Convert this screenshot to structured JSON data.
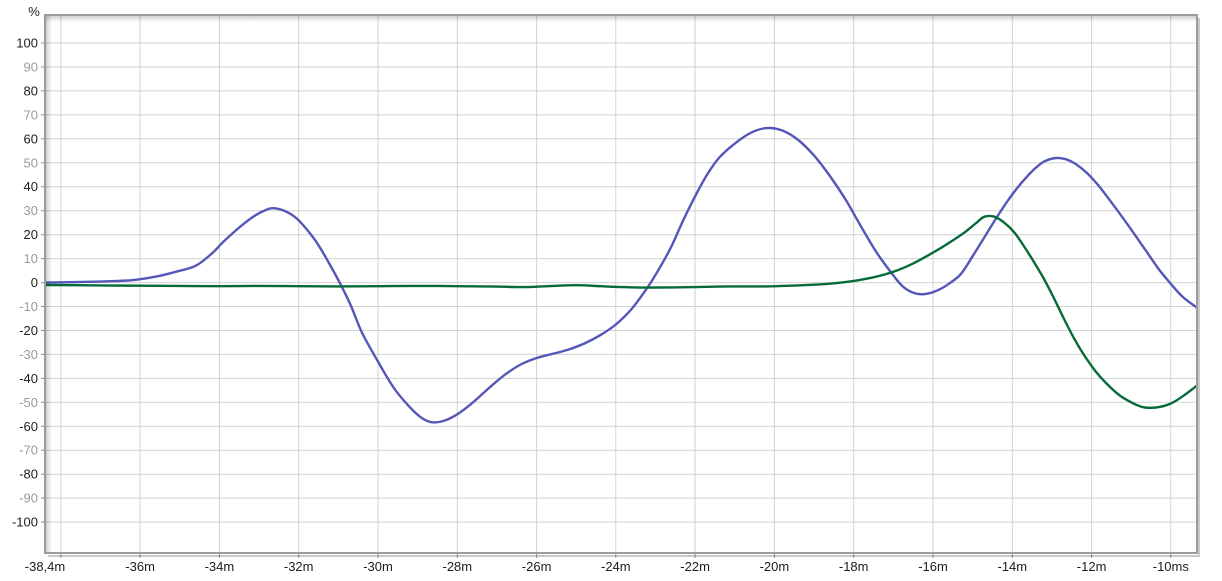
{
  "chart_data": {
    "type": "line",
    "title": "",
    "ylabel": "%",
    "xlabel": "",
    "x_unit": "ms",
    "xlim": [
      -38.4,
      -9.34
    ],
    "ylim": [
      -112.9,
      111.7
    ],
    "grid": true,
    "legend_position": "none",
    "x_gridlines": [
      -38,
      -36,
      -34,
      -32,
      -30,
      -28,
      -26,
      -24,
      -22,
      -20,
      -18,
      -16,
      -14,
      -12,
      -10
    ],
    "x_ticks": [
      {
        "t": -38.4,
        "label": "-38,4m"
      },
      {
        "t": -36,
        "label": "-36m"
      },
      {
        "t": -34,
        "label": "-34m"
      },
      {
        "t": -32,
        "label": "-32m"
      },
      {
        "t": -30,
        "label": "-30m"
      },
      {
        "t": -28,
        "label": "-28m"
      },
      {
        "t": -26,
        "label": "-26m"
      },
      {
        "t": -24,
        "label": "-24m"
      },
      {
        "t": -22,
        "label": "-22m"
      },
      {
        "t": -20,
        "label": "-20m"
      },
      {
        "t": -18,
        "label": "-18m"
      },
      {
        "t": -16,
        "label": "-16m"
      },
      {
        "t": -14,
        "label": "-14m"
      },
      {
        "t": -12,
        "label": "-12m"
      },
      {
        "t": -10,
        "label": "-10ms"
      }
    ],
    "y_ticks": [
      {
        "v": 100,
        "label": "100",
        "major": true
      },
      {
        "v": 90,
        "label": "90",
        "major": false
      },
      {
        "v": 80,
        "label": "80",
        "major": true
      },
      {
        "v": 70,
        "label": "70",
        "major": false
      },
      {
        "v": 60,
        "label": "60",
        "major": true
      },
      {
        "v": 50,
        "label": "50",
        "major": false
      },
      {
        "v": 40,
        "label": "40",
        "major": true
      },
      {
        "v": 30,
        "label": "30",
        "major": false
      },
      {
        "v": 20,
        "label": "20",
        "major": true
      },
      {
        "v": 10,
        "label": "10",
        "major": false
      },
      {
        "v": 0,
        "label": "0",
        "major": true
      },
      {
        "v": -10,
        "label": "-10",
        "major": false
      },
      {
        "v": -20,
        "label": "-20",
        "major": true
      },
      {
        "v": -30,
        "label": "-30",
        "major": false
      },
      {
        "v": -40,
        "label": "-40",
        "major": true
      },
      {
        "v": -50,
        "label": "-50",
        "major": false
      },
      {
        "v": -60,
        "label": "-60",
        "major": true
      },
      {
        "v": -70,
        "label": "-70",
        "major": false
      },
      {
        "v": -80,
        "label": "-80",
        "major": true
      },
      {
        "v": -90,
        "label": "-90",
        "major": false
      },
      {
        "v": -100,
        "label": "-100",
        "major": true
      }
    ],
    "series": [
      {
        "name": "blue-trace",
        "color": "#5456b8",
        "points": [
          [
            -38.4,
            0
          ],
          [
            -37.6,
            0.2
          ],
          [
            -36.9,
            0.5
          ],
          [
            -36.2,
            1
          ],
          [
            -35.6,
            2.5
          ],
          [
            -35.1,
            4.5
          ],
          [
            -34.6,
            7
          ],
          [
            -34.2,
            12
          ],
          [
            -33.9,
            17
          ],
          [
            -33.5,
            23
          ],
          [
            -33.1,
            28
          ],
          [
            -32.8,
            30.5
          ],
          [
            -32.6,
            31
          ],
          [
            -32.3,
            29.5
          ],
          [
            -32,
            26
          ],
          [
            -31.6,
            18
          ],
          [
            -31.3,
            10
          ],
          [
            -31,
            1
          ],
          [
            -30.7,
            -9
          ],
          [
            -30.4,
            -21
          ],
          [
            -30,
            -33
          ],
          [
            -29.6,
            -44
          ],
          [
            -29.2,
            -52
          ],
          [
            -28.9,
            -56.5
          ],
          [
            -28.65,
            -58.3
          ],
          [
            -28.35,
            -57.8
          ],
          [
            -28,
            -55
          ],
          [
            -27.6,
            -50
          ],
          [
            -27.2,
            -44
          ],
          [
            -26.8,
            -38.5
          ],
          [
            -26.4,
            -34.2
          ],
          [
            -26,
            -31.5
          ],
          [
            -25.6,
            -29.8
          ],
          [
            -25.2,
            -28
          ],
          [
            -24.8,
            -25.5
          ],
          [
            -24.4,
            -22
          ],
          [
            -24,
            -17.5
          ],
          [
            -23.6,
            -11
          ],
          [
            -23.2,
            -2
          ],
          [
            -22.9,
            6
          ],
          [
            -22.6,
            15
          ],
          [
            -22.3,
            26
          ],
          [
            -22,
            36
          ],
          [
            -21.7,
            45
          ],
          [
            -21.4,
            52
          ],
          [
            -21,
            58
          ],
          [
            -20.6,
            62.5
          ],
          [
            -20.2,
            64.5
          ],
          [
            -19.8,
            63.5
          ],
          [
            -19.4,
            59.5
          ],
          [
            -19,
            53
          ],
          [
            -18.6,
            44.5
          ],
          [
            -18.2,
            34.5
          ],
          [
            -17.8,
            23
          ],
          [
            -17.4,
            12
          ],
          [
            -17,
            3
          ],
          [
            -16.8,
            -1
          ],
          [
            -16.6,
            -3.5
          ],
          [
            -16.35,
            -4.8
          ],
          [
            -16.1,
            -4.5
          ],
          [
            -15.85,
            -3
          ],
          [
            -15.6,
            -0.5
          ],
          [
            -15.3,
            3.5
          ],
          [
            -15,
            11
          ],
          [
            -14.7,
            19
          ],
          [
            -14.4,
            27
          ],
          [
            -14.1,
            34.5
          ],
          [
            -13.8,
            41
          ],
          [
            -13.5,
            46.5
          ],
          [
            -13.2,
            50.5
          ],
          [
            -12.9,
            52
          ],
          [
            -12.65,
            51.5
          ],
          [
            -12.4,
            49.5
          ],
          [
            -12.1,
            45.5
          ],
          [
            -11.8,
            40
          ],
          [
            -11.5,
            33.5
          ],
          [
            -11.1,
            24.5
          ],
          [
            -10.7,
            15
          ],
          [
            -10.3,
            5.5
          ],
          [
            -10,
            -0.5
          ],
          [
            -9.7,
            -6
          ],
          [
            -9.34,
            -10.5
          ]
        ]
      },
      {
        "name": "green-trace",
        "color": "#076b39",
        "points": [
          [
            -38.4,
            -1
          ],
          [
            -37,
            -1.2
          ],
          [
            -36,
            -1.3
          ],
          [
            -35,
            -1.4
          ],
          [
            -34,
            -1.5
          ],
          [
            -33,
            -1.4
          ],
          [
            -32,
            -1.5
          ],
          [
            -31,
            -1.6
          ],
          [
            -30,
            -1.5
          ],
          [
            -29,
            -1.4
          ],
          [
            -28,
            -1.5
          ],
          [
            -27,
            -1.7
          ],
          [
            -26.3,
            -1.9
          ],
          [
            -25.6,
            -1.4
          ],
          [
            -25,
            -1.1
          ],
          [
            -24.4,
            -1.5
          ],
          [
            -23.8,
            -1.9
          ],
          [
            -23.2,
            -2.1
          ],
          [
            -22.6,
            -2
          ],
          [
            -22,
            -1.9
          ],
          [
            -21.4,
            -1.7
          ],
          [
            -20.8,
            -1.6
          ],
          [
            -20.2,
            -1.6
          ],
          [
            -19.6,
            -1.3
          ],
          [
            -19,
            -0.9
          ],
          [
            -18.5,
            -0.3
          ],
          [
            -18,
            0.7
          ],
          [
            -17.5,
            2.2
          ],
          [
            -17,
            4.5
          ],
          [
            -16.5,
            8
          ],
          [
            -16,
            12.5
          ],
          [
            -15.6,
            16.5
          ],
          [
            -15.2,
            21
          ],
          [
            -14.9,
            25
          ],
          [
            -14.7,
            27.5
          ],
          [
            -14.45,
            27.5
          ],
          [
            -14.2,
            25
          ],
          [
            -13.95,
            21
          ],
          [
            -13.7,
            15
          ],
          [
            -13.45,
            8.5
          ],
          [
            -13.2,
            1.5
          ],
          [
            -12.95,
            -6.5
          ],
          [
            -12.7,
            -15
          ],
          [
            -12.45,
            -23
          ],
          [
            -12.2,
            -30
          ],
          [
            -11.9,
            -37
          ],
          [
            -11.6,
            -42.5
          ],
          [
            -11.3,
            -47
          ],
          [
            -11,
            -50
          ],
          [
            -10.75,
            -51.8
          ],
          [
            -10.55,
            -52.3
          ],
          [
            -10.3,
            -52
          ],
          [
            -10,
            -50.5
          ],
          [
            -9.7,
            -47.5
          ],
          [
            -9.34,
            -43
          ]
        ]
      }
    ]
  },
  "colors": {
    "background": "#ffffff",
    "plot_background": "#ffffff",
    "grid": "#d2d2d2",
    "frame": "#9b9b9b",
    "frame_shadow_outer": "#c9c9c9",
    "tick_label_black": "#1c1c1c",
    "tick_label_gray": "#9c9c9c",
    "series_blue": "#5456b8",
    "series_green": "#076b39"
  }
}
